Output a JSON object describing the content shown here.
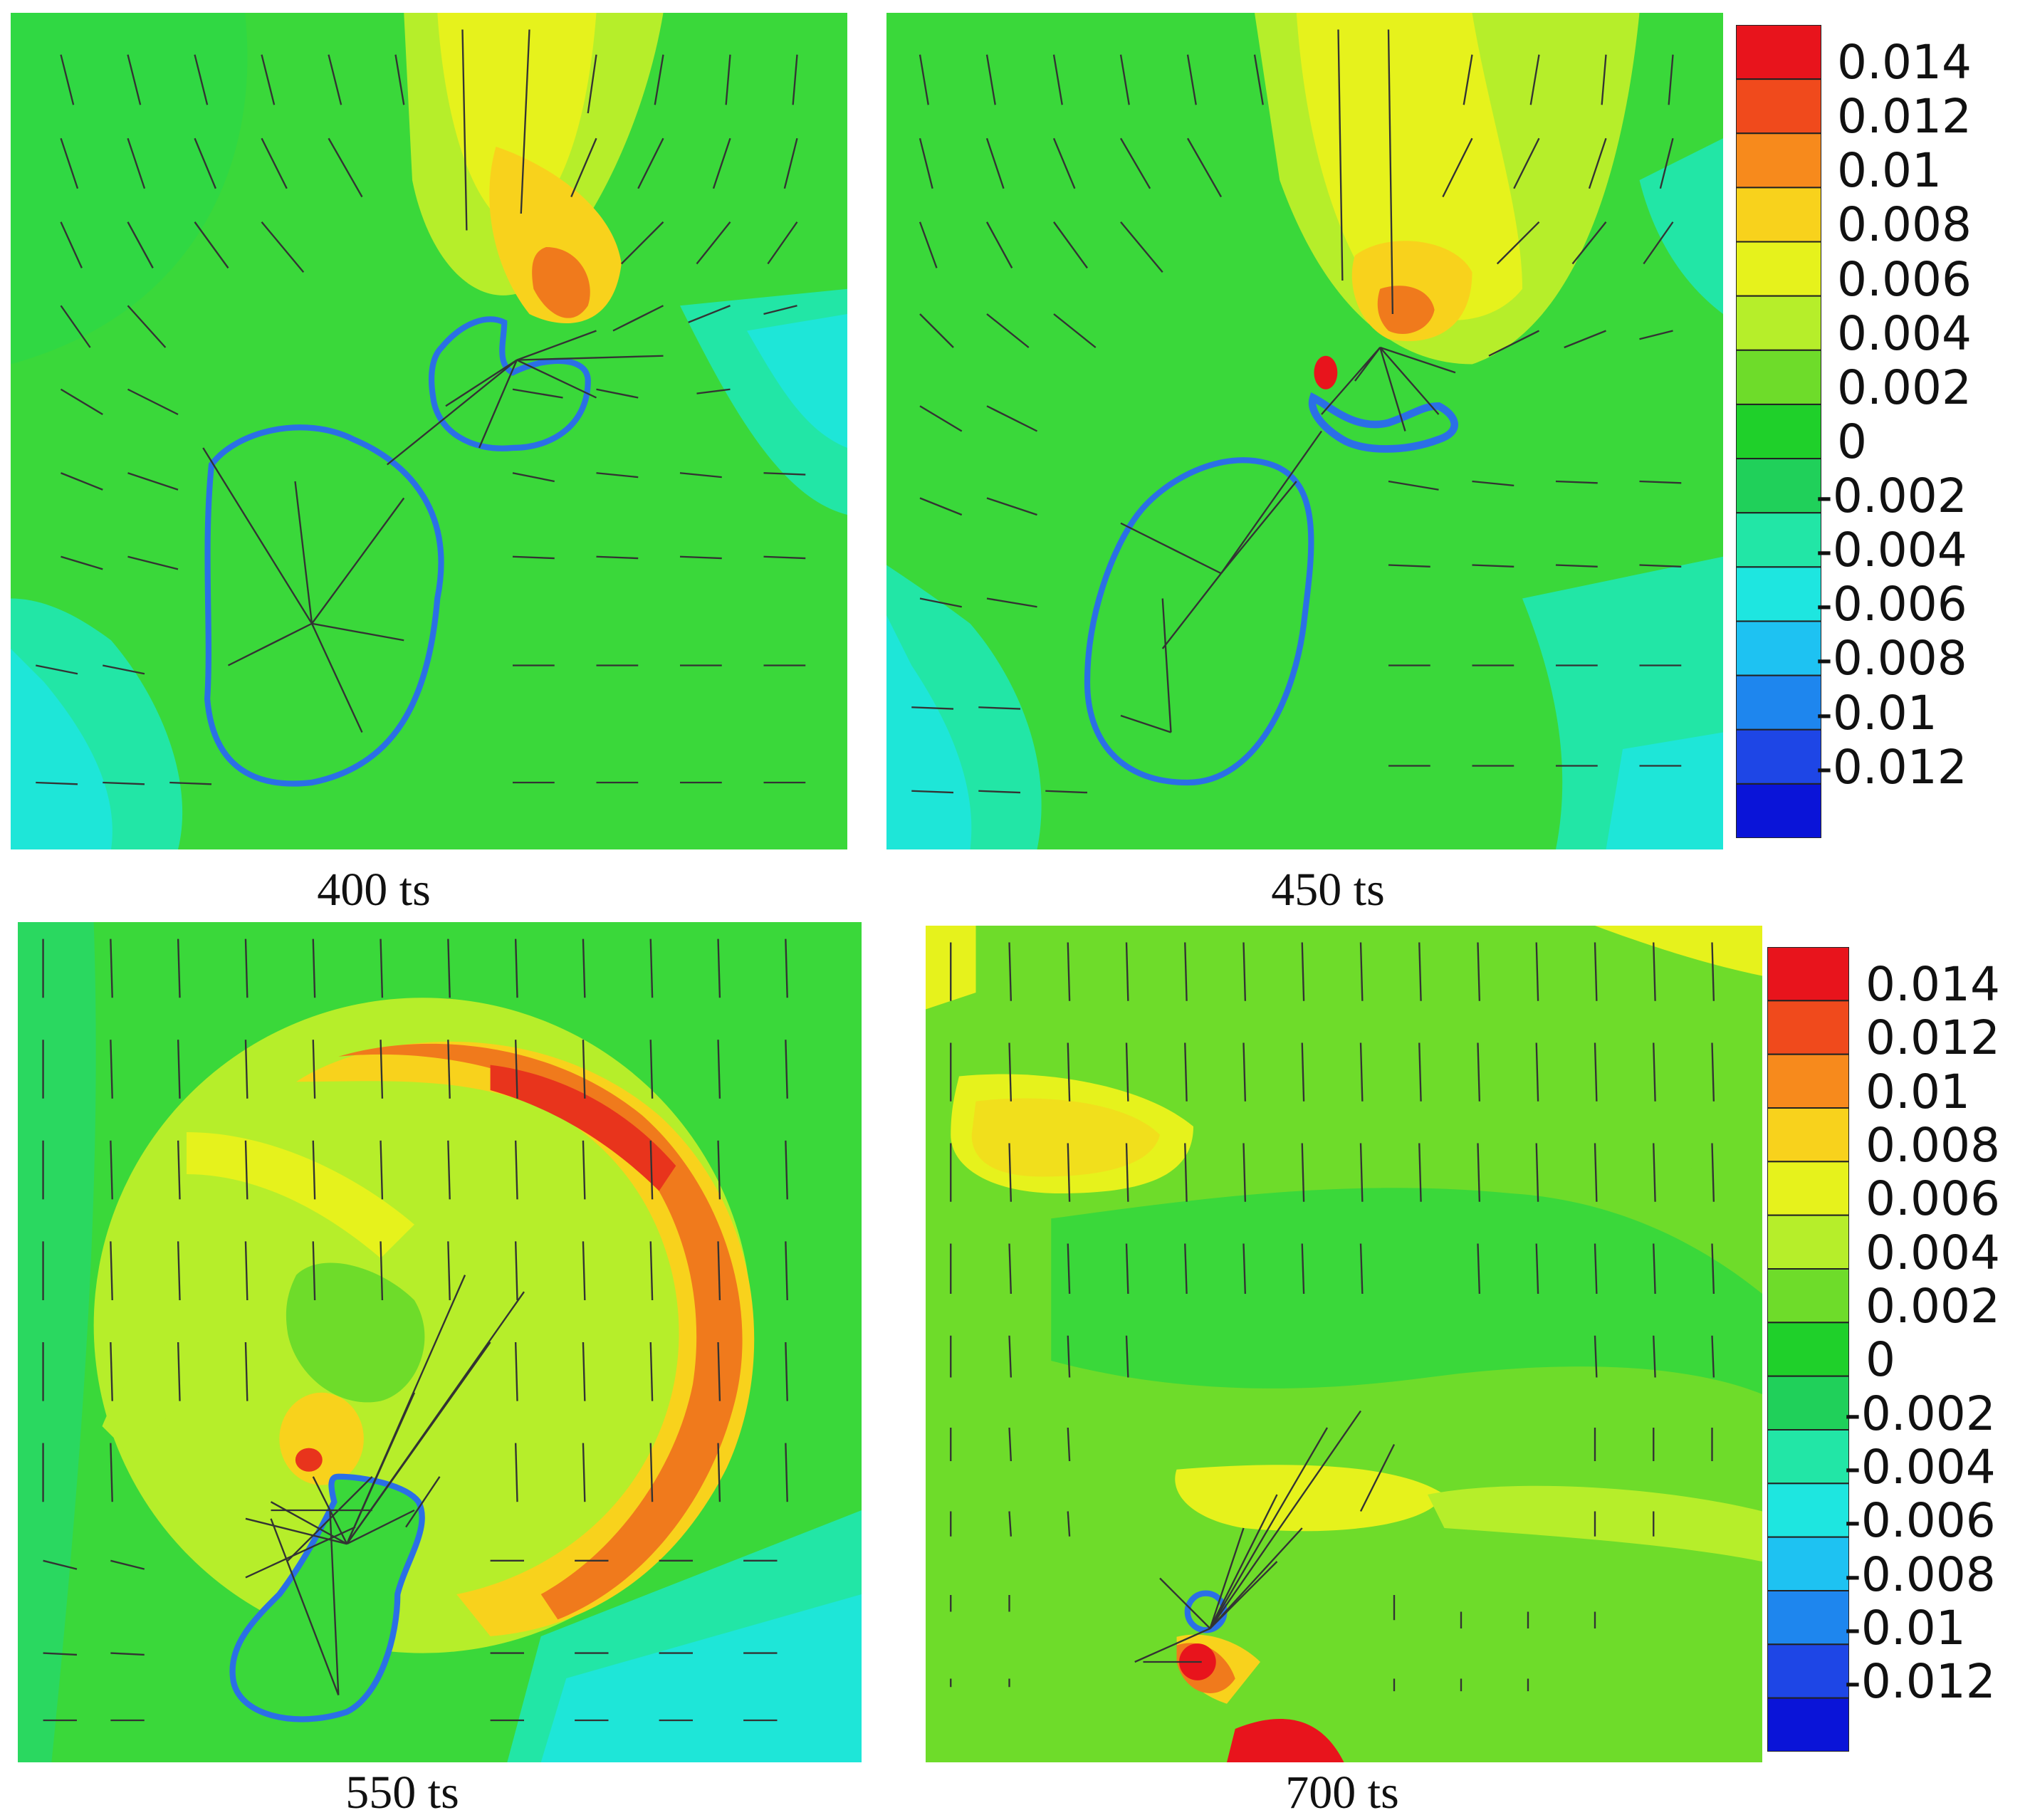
{
  "panels": [
    {
      "id": "p1",
      "label": "400 ts"
    },
    {
      "id": "p2",
      "label": "450 ts"
    },
    {
      "id": "p3",
      "label": "550 ts"
    },
    {
      "id": "p4",
      "label": "700 ts"
    }
  ],
  "colorbar": {
    "levels": [
      "0.014",
      "0.012",
      "0.01",
      "0.008",
      "0.006",
      "0.004",
      "0.002",
      "0",
      "-0.002",
      "-0.004",
      "-0.006",
      "-0.008",
      "-0.01",
      "-0.012"
    ],
    "colors": [
      "#e8141c",
      "#f04a1c",
      "#f78a1c",
      "#f8d21c",
      "#e6f21c",
      "#b6ee2a",
      "#6edc2a",
      "#1fd02a",
      "#20d05a",
      "#22e6a6",
      "#1ee6e0",
      "#1ec2f2",
      "#1e86ee",
      "#1e46e6",
      "#0a14d8"
    ]
  },
  "colors": {
    "interface": "#2b6fe6",
    "arrow": "#333333",
    "background_green": "#36d63a"
  }
}
